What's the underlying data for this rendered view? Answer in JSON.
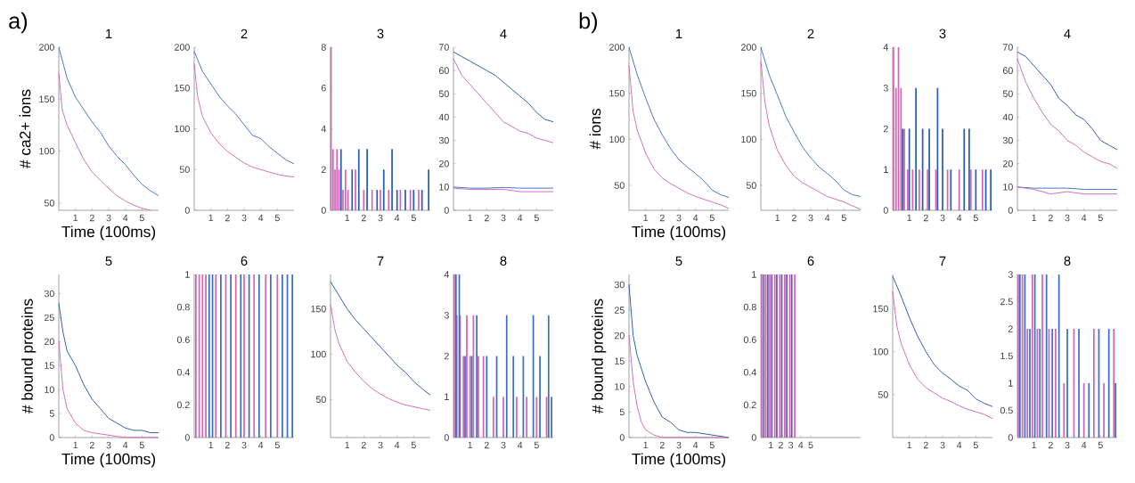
{
  "chart_data": [
    {
      "type": "line",
      "title": "1",
      "xlabel": "Time (100ms)",
      "ylabel": "# ca2+ ions",
      "annotations": [
        "a)"
      ],
      "xlim": [
        0,
        6
      ],
      "ylim": [
        43,
        200
      ],
      "xticks": [
        1,
        2,
        3,
        4,
        5
      ],
      "yticks": [
        50,
        100,
        150,
        200
      ],
      "series": [
        {
          "color": "#3b6fc4",
          "x": [
            0,
            0.5,
            1,
            1.5,
            2,
            2.5,
            3,
            3.5,
            4,
            4.5,
            5,
            5.5,
            6
          ],
          "values": [
            200,
            170,
            152,
            140,
            128,
            118,
            105,
            95,
            87,
            77,
            68,
            62,
            57
          ]
        },
        {
          "color": "#d066b4",
          "x": [
            0,
            0.2,
            0.5,
            1,
            1.5,
            2,
            2.5,
            3,
            3.5,
            4,
            4.5,
            5,
            5.5
          ],
          "values": [
            175,
            140,
            125,
            108,
            92,
            80,
            72,
            64,
            57,
            52,
            48,
            45,
            43
          ]
        }
      ]
    },
    {
      "type": "line",
      "title": "2",
      "xlim": [
        0,
        6
      ],
      "ylim": [
        0,
        200
      ],
      "xticks": [
        1,
        2,
        3,
        4,
        5
      ],
      "yticks": [
        0,
        50,
        100,
        150,
        200
      ],
      "series": [
        {
          "color": "#3b6fc4",
          "x": [
            0,
            0.5,
            1,
            1.5,
            2,
            2.5,
            3,
            3.5,
            4,
            4.5,
            5,
            5.5,
            6
          ],
          "values": [
            195,
            170,
            155,
            140,
            128,
            118,
            105,
            92,
            88,
            78,
            70,
            62,
            57
          ]
        },
        {
          "color": "#d066b4",
          "x": [
            0,
            0.2,
            0.5,
            1,
            1.5,
            2,
            2.5,
            3,
            3.5,
            4,
            4.5,
            5,
            5.5,
            6
          ],
          "values": [
            180,
            140,
            115,
            95,
            82,
            72,
            65,
            58,
            53,
            50,
            47,
            44,
            42,
            41
          ]
        }
      ]
    },
    {
      "type": "bar",
      "title": "3",
      "xlim": [
        0,
        6
      ],
      "ylim": [
        0,
        8
      ],
      "xticks": [
        1,
        2,
        3,
        4,
        5
      ],
      "yticks": [
        0,
        2,
        4,
        6,
        8
      ],
      "series": [
        {
          "color": "#d066b4",
          "x": [
            0.03,
            0.15,
            0.27,
            0.39,
            0.51,
            0.75,
            0.9,
            1.05,
            1.5,
            2.0,
            2.5,
            3.0,
            3.5,
            4.2,
            4.8,
            5.3
          ],
          "values": [
            8,
            3,
            2,
            3,
            2,
            1,
            2,
            1,
            2,
            1,
            1,
            1,
            1,
            1,
            1,
            1
          ]
        },
        {
          "color": "#2a5db0",
          "x": [
            0.63,
            1.3,
            1.7,
            2.2,
            2.8,
            3.2,
            3.7,
            4.0,
            4.5,
            5.0,
            5.5,
            5.9
          ],
          "values": [
            3,
            2,
            3,
            3,
            1,
            2,
            3,
            1,
            1,
            1,
            1,
            2
          ]
        }
      ]
    },
    {
      "type": "line",
      "title": "4",
      "xlim": [
        0,
        6
      ],
      "ylim": [
        0,
        70
      ],
      "xticks": [
        1,
        2,
        3,
        4,
        5
      ],
      "yticks": [
        0,
        10,
        20,
        30,
        40,
        50,
        60,
        70
      ],
      "series": [
        {
          "color": "#1f55b0",
          "x": [
            0,
            0.5,
            1,
            1.5,
            2,
            2.5,
            3,
            3.5,
            4,
            4.5,
            5,
            5.5,
            6
          ],
          "values": [
            68,
            66,
            64,
            62,
            60,
            58,
            55,
            52,
            49,
            46,
            42,
            39,
            38
          ]
        },
        {
          "color": "#d066b4",
          "x": [
            0,
            0.5,
            1,
            1.5,
            2,
            2.5,
            3,
            3.5,
            4,
            4.5,
            5,
            5.5,
            6
          ],
          "values": [
            65,
            58,
            54,
            50,
            46,
            42,
            38,
            36,
            34,
            33,
            31,
            30,
            29
          ]
        },
        {
          "color": "#3b6fc4",
          "x": [
            0,
            1,
            2,
            3,
            4,
            5,
            6
          ],
          "values": [
            10,
            9.5,
            9.5,
            9.8,
            9.5,
            9.5,
            9.5
          ]
        },
        {
          "color": "#d066b4",
          "x": [
            0,
            1,
            2,
            3,
            4,
            5,
            6
          ],
          "values": [
            9.5,
            9,
            9,
            9,
            8,
            8,
            8
          ]
        }
      ]
    },
    {
      "type": "line",
      "title": "5",
      "xlabel": "Time (100ms)",
      "ylabel": "# bound proteins",
      "xlim": [
        0,
        6
      ],
      "ylim": [
        0,
        34
      ],
      "xticks": [
        1,
        2,
        3,
        4,
        5
      ],
      "yticks": [
        0,
        5,
        10,
        15,
        20,
        25,
        30
      ],
      "series": [
        {
          "color": "#1f55b0",
          "x": [
            0,
            0.25,
            0.5,
            1,
            1.5,
            2,
            2.5,
            3,
            3.5,
            4,
            4.5,
            5,
            5.5,
            6
          ],
          "values": [
            28,
            22,
            18,
            15,
            11,
            8,
            6,
            4,
            3,
            2,
            1.5,
            1.5,
            1,
            1
          ]
        },
        {
          "color": "#d066b4",
          "x": [
            0,
            0.25,
            0.5,
            1,
            1.5,
            2,
            3,
            4,
            5,
            6
          ],
          "values": [
            20,
            10,
            6,
            3,
            1.5,
            1,
            0.5,
            0,
            0,
            0
          ]
        }
      ]
    },
    {
      "type": "bar",
      "title": "6",
      "xlim": [
        0,
        6
      ],
      "ylim": [
        0,
        1
      ],
      "xticks": [
        1,
        2,
        3,
        4,
        5
      ],
      "yticks": [
        0,
        0.2,
        0.4,
        0.6,
        0.8,
        1
      ],
      "series": [
        {
          "color": "#d066b4",
          "x": [
            0.1,
            0.3,
            0.5,
            0.7,
            1.3,
            1.9,
            2.5,
            3.0,
            3.6,
            4.3,
            5.0
          ],
          "values": [
            1,
            1,
            1,
            1,
            1,
            1,
            1,
            1,
            1,
            1,
            1
          ]
        },
        {
          "color": "#3b6fc4",
          "x": [
            0.9,
            1.1,
            1.6,
            2.2,
            2.8,
            3.3,
            3.9,
            4.6,
            5.3,
            5.6,
            5.9
          ],
          "values": [
            1,
            1,
            1,
            1,
            1,
            1,
            1,
            1,
            1,
            1,
            1
          ]
        }
      ]
    },
    {
      "type": "line",
      "title": "7",
      "xlim": [
        0,
        6
      ],
      "ylim": [
        8,
        188
      ],
      "xticks": [
        1,
        2,
        3,
        4,
        5
      ],
      "yticks": [
        50,
        100,
        150
      ],
      "series": [
        {
          "color": "#1f55b0",
          "x": [
            0,
            0.5,
            1,
            1.5,
            2,
            2.5,
            3,
            3.5,
            4,
            4.5,
            5,
            5.5,
            6
          ],
          "values": [
            180,
            165,
            150,
            138,
            128,
            118,
            108,
            98,
            88,
            80,
            70,
            62,
            55
          ]
        },
        {
          "color": "#d066b4",
          "x": [
            0,
            0.25,
            0.5,
            1,
            1.5,
            2,
            2.5,
            3,
            3.5,
            4,
            4.5,
            5,
            5.5,
            6
          ],
          "values": [
            155,
            128,
            112,
            92,
            80,
            70,
            62,
            56,
            51,
            47,
            44,
            42,
            40,
            38
          ]
        }
      ]
    },
    {
      "type": "bar",
      "title": "8",
      "xlim": [
        0,
        6
      ],
      "ylim": [
        0,
        4
      ],
      "xticks": [
        1,
        2,
        3,
        4,
        5
      ],
      "yticks": [
        0,
        1,
        2,
        3,
        4
      ],
      "series": [
        {
          "color": "#d066b4",
          "x": [
            0.05,
            0.2,
            0.4,
            0.6,
            0.8,
            1.0,
            1.2,
            1.5,
            1.8,
            2.4,
            3.0,
            3.8,
            4.4,
            5.0,
            5.6
          ],
          "values": [
            4,
            3,
            3,
            2,
            3,
            2,
            3,
            2,
            2,
            1,
            1,
            1,
            1,
            1,
            1
          ]
        },
        {
          "color": "#3b6fc4",
          "x": [
            0.15,
            0.35,
            0.7,
            1.1,
            1.4,
            2.0,
            2.6,
            3.2,
            3.6,
            4.2,
            4.8,
            5.2,
            5.72,
            5.9
          ],
          "values": [
            4,
            4,
            2,
            2,
            3,
            2,
            2,
            3,
            2,
            2,
            3,
            2,
            3,
            1
          ]
        }
      ]
    },
    {
      "type": "line",
      "title": "1",
      "xlabel": "Time (100ms)",
      "ylabel": "# ions",
      "annotations": [
        "b)"
      ],
      "xlim": [
        0,
        6
      ],
      "ylim": [
        23,
        200
      ],
      "xticks": [
        1,
        2,
        3,
        4,
        5
      ],
      "yticks": [
        50,
        100,
        150,
        200
      ],
      "series": [
        {
          "color": "#3b6fc4",
          "x": [
            0,
            0.5,
            1,
            1.5,
            2,
            2.5,
            3,
            3.5,
            4,
            4.5,
            5,
            5.5,
            6
          ],
          "values": [
            200,
            170,
            145,
            122,
            105,
            90,
            78,
            70,
            63,
            55,
            45,
            40,
            37
          ]
        },
        {
          "color": "#d066b4",
          "x": [
            0,
            0.25,
            0.5,
            1,
            1.5,
            2,
            2.5,
            3,
            3.5,
            4,
            4.5,
            5,
            5.5,
            6
          ],
          "values": [
            180,
            130,
            110,
            85,
            68,
            58,
            52,
            47,
            42,
            38,
            35,
            32,
            29,
            25
          ]
        }
      ]
    },
    {
      "type": "line",
      "title": "2",
      "xlim": [
        0,
        6
      ],
      "ylim": [
        23,
        200
      ],
      "xticks": [
        1,
        2,
        3,
        4,
        5
      ],
      "yticks": [
        50,
        100,
        150,
        200
      ],
      "series": [
        {
          "color": "#3b6fc4",
          "x": [
            0,
            0.5,
            1,
            1.5,
            2,
            2.5,
            3,
            3.5,
            4,
            4.5,
            5,
            5.5,
            6
          ],
          "values": [
            200,
            170,
            148,
            125,
            108,
            92,
            80,
            70,
            63,
            55,
            45,
            40,
            38
          ]
        },
        {
          "color": "#d066b4",
          "x": [
            0,
            0.25,
            0.5,
            1,
            1.5,
            2,
            2.5,
            3,
            3.5,
            4,
            4.5,
            5,
            5.5,
            6
          ],
          "values": [
            185,
            140,
            115,
            88,
            72,
            60,
            53,
            48,
            43,
            38,
            35,
            32,
            28,
            24
          ]
        }
      ]
    },
    {
      "type": "bar",
      "title": "3",
      "xlim": [
        0,
        6
      ],
      "ylim": [
        0,
        4
      ],
      "xticks": [
        1,
        2,
        3,
        4,
        5
      ],
      "yticks": [
        0,
        1,
        2,
        3,
        4
      ],
      "series": [
        {
          "color": "#d066b4",
          "x": [
            0.05,
            0.2,
            0.35,
            0.5,
            0.7,
            0.9,
            1.2,
            1.6,
            2.1,
            2.6,
            3.3,
            4.0,
            4.7,
            5.4
          ],
          "values": [
            4,
            3,
            4,
            3,
            2,
            1,
            1,
            1,
            1,
            1,
            1,
            1,
            1,
            1
          ]
        },
        {
          "color": "#2a5db0",
          "x": [
            0.6,
            1.0,
            1.4,
            1.8,
            2.2,
            2.7,
            3.0,
            3.5,
            4.3,
            4.6,
            5.0,
            5.6,
            5.9
          ],
          "values": [
            2,
            2,
            3,
            2,
            2,
            3,
            2,
            1,
            2,
            2,
            1,
            1,
            1
          ]
        }
      ]
    },
    {
      "type": "line",
      "title": "4",
      "xlim": [
        0,
        6
      ],
      "ylim": [
        0,
        70
      ],
      "xticks": [
        1,
        2,
        3,
        4,
        5
      ],
      "yticks": [
        0,
        10,
        20,
        30,
        40,
        50,
        60,
        70
      ],
      "series": [
        {
          "color": "#1f55b0",
          "x": [
            0,
            0.5,
            1,
            1.5,
            2,
            2.5,
            3,
            3.5,
            4,
            4.5,
            5,
            5.5,
            6
          ],
          "values": [
            68,
            66,
            62,
            58,
            54,
            48,
            45,
            41,
            39,
            35,
            30,
            28,
            26
          ]
        },
        {
          "color": "#d066b4",
          "x": [
            0,
            0.5,
            1,
            1.5,
            2,
            2.5,
            3,
            3.5,
            4,
            4.5,
            5,
            5.5,
            6
          ],
          "values": [
            65,
            55,
            48,
            42,
            37,
            34,
            30,
            28,
            25,
            23,
            21,
            20,
            18
          ]
        },
        {
          "color": "#3b6fc4",
          "x": [
            0,
            1,
            2,
            3,
            4,
            5,
            6
          ],
          "values": [
            10,
            9.5,
            9.5,
            9.5,
            9,
            9,
            9
          ]
        },
        {
          "color": "#d066b4",
          "x": [
            0,
            1,
            2,
            3,
            4,
            5,
            6
          ],
          "values": [
            10,
            9,
            7,
            8,
            7,
            7,
            7
          ]
        }
      ]
    },
    {
      "type": "line",
      "title": "5",
      "xlabel": "Time (100ms)",
      "ylabel": "# bound proteins",
      "xlim": [
        0,
        6
      ],
      "ylim": [
        0,
        32
      ],
      "xticks": [
        1,
        2,
        3,
        4,
        5
      ],
      "yticks": [
        0,
        5,
        10,
        15,
        20,
        25,
        30
      ],
      "series": [
        {
          "color": "#1f55b0",
          "x": [
            0,
            0.25,
            0.5,
            1,
            1.5,
            2,
            2.5,
            3,
            3.5,
            4,
            5,
            6
          ],
          "values": [
            30,
            20,
            16,
            11,
            7,
            4,
            3,
            1.5,
            1,
            1,
            0.5,
            0
          ]
        },
        {
          "color": "#d066b4",
          "x": [
            0,
            0.25,
            0.5,
            0.75,
            1,
            1.5,
            2,
            3,
            6
          ],
          "values": [
            20,
            11,
            6,
            3,
            1.5,
            0.5,
            0,
            0,
            0
          ]
        }
      ]
    },
    {
      "type": "bar",
      "title": "6",
      "xlim": [
        0,
        10
      ],
      "ylim": [
        0,
        1
      ],
      "xticks": [
        1,
        2,
        3,
        4,
        5
      ],
      "yticks": [
        0,
        0.2,
        0.4,
        0.6,
        0.8,
        1
      ],
      "series": [
        {
          "color": "#d066b4",
          "x": [
            0.1,
            0.5,
            0.9,
            1.4,
            1.9,
            2.4,
            2.9,
            3.4
          ],
          "values": [
            1,
            1,
            1,
            1,
            1,
            1,
            1,
            1
          ]
        },
        {
          "color": "#6a55b0",
          "x": [
            0.3,
            0.7,
            1.1,
            1.6,
            2.1,
            2.6,
            3.1
          ],
          "values": [
            1,
            1,
            1,
            1,
            1,
            1,
            1
          ]
        }
      ]
    },
    {
      "type": "line",
      "title": "7",
      "xlim": [
        0,
        6
      ],
      "ylim": [
        0,
        190
      ],
      "xticks": [
        1,
        2,
        3,
        4,
        5
      ],
      "yticks": [
        50,
        100,
        150
      ],
      "series": [
        {
          "color": "#1f55b0",
          "x": [
            0,
            0.5,
            1,
            1.5,
            2,
            2.5,
            3,
            3.5,
            4,
            4.5,
            5,
            5.5,
            6
          ],
          "values": [
            188,
            165,
            140,
            118,
            100,
            85,
            75,
            68,
            60,
            55,
            45,
            40,
            36
          ]
        },
        {
          "color": "#d066b4",
          "x": [
            0,
            0.25,
            0.5,
            1,
            1.5,
            2,
            2.5,
            3,
            3.5,
            4,
            4.5,
            5,
            5.5,
            6
          ],
          "values": [
            170,
            130,
            110,
            85,
            68,
            58,
            52,
            46,
            42,
            37,
            33,
            30,
            27,
            22
          ]
        }
      ]
    },
    {
      "type": "bar",
      "title": "8",
      "xlim": [
        0,
        6
      ],
      "ylim": [
        0,
        3
      ],
      "xticks": [
        1,
        2,
        3,
        4,
        5
      ],
      "yticks": [
        0,
        0.5,
        1,
        1.5,
        2,
        2.5,
        3
      ],
      "series": [
        {
          "color": "#d066b4",
          "x": [
            0.05,
            0.3,
            0.6,
            0.9,
            1.2,
            1.5,
            1.9,
            2.3,
            2.8,
            3.4,
            4.0,
            4.6,
            5.2,
            5.8
          ],
          "values": [
            3,
            3,
            2,
            3,
            2,
            3,
            2,
            2,
            1,
            2,
            1,
            2,
            1,
            2
          ]
        },
        {
          "color": "#3b6fc4",
          "x": [
            0.15,
            0.45,
            0.75,
            1.05,
            1.35,
            1.75,
            2.1,
            2.5,
            3.0,
            3.7,
            4.3,
            4.9,
            5.5,
            5.9
          ],
          "values": [
            3,
            3,
            2,
            3,
            2,
            3,
            2,
            3,
            2,
            2,
            1,
            2,
            2,
            1
          ]
        }
      ]
    }
  ]
}
